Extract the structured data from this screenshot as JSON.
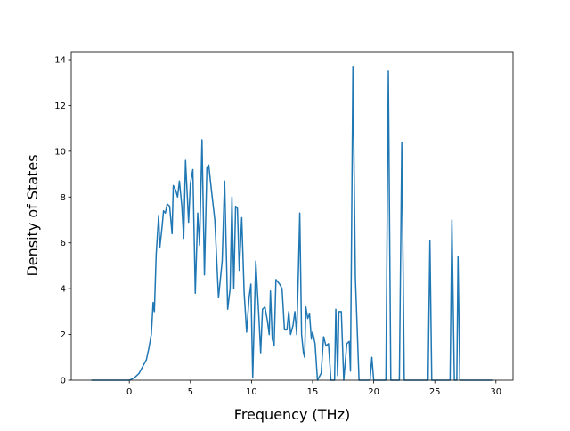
{
  "chart_data": {
    "type": "line",
    "xlabel": "Frequency (THz)",
    "ylabel": "Density of States",
    "color": "#1f77b4",
    "x": [
      -3.1,
      0,
      0.4,
      0.8,
      1.1,
      1.4,
      1.6,
      1.8,
      1.95,
      2.05,
      2.2,
      2.4,
      2.5,
      2.7,
      2.8,
      2.95,
      3.1,
      3.3,
      3.5,
      3.6,
      3.8,
      3.95,
      4.1,
      4.3,
      4.45,
      4.6,
      4.75,
      4.85,
      5.0,
      5.2,
      5.4,
      5.6,
      5.75,
      5.95,
      6.15,
      6.35,
      6.5,
      6.7,
      7.0,
      7.3,
      7.6,
      7.8,
      8.05,
      8.25,
      8.4,
      8.55,
      8.7,
      8.85,
      9.0,
      9.2,
      9.4,
      9.6,
      9.8,
      9.95,
      10.1,
      10.35,
      10.6,
      10.75,
      10.9,
      11.1,
      11.3,
      11.45,
      11.55,
      11.7,
      11.85,
      12.0,
      12.3,
      12.5,
      12.7,
      12.9,
      13.05,
      13.2,
      13.4,
      13.55,
      13.7,
      13.85,
      13.95,
      14.1,
      14.25,
      14.35,
      14.45,
      14.6,
      14.75,
      14.9,
      15.0,
      15.2,
      15.4,
      15.7,
      15.9,
      16.1,
      16.3,
      16.5,
      16.8,
      16.9,
      17.05,
      17.15,
      17.35,
      17.55,
      17.8,
      18.0,
      18.1,
      18.3,
      18.5,
      18.8,
      19.7,
      19.85,
      20.0,
      21.0,
      21.2,
      21.4,
      22.1,
      22.3,
      22.5,
      24.45,
      24.6,
      24.75,
      26.25,
      26.4,
      26.6,
      26.8,
      26.9,
      27.05,
      29.7
    ],
    "values": [
      0,
      0,
      0.1,
      0.3,
      0.6,
      0.9,
      1.4,
      2.0,
      3.4,
      3.0,
      5.5,
      7.2,
      5.8,
      6.8,
      7.4,
      7.3,
      7.7,
      7.6,
      6.4,
      8.5,
      8.3,
      8.0,
      8.7,
      7.6,
      6.2,
      9.6,
      8.0,
      6.9,
      8.6,
      9.2,
      3.8,
      7.3,
      5.9,
      10.5,
      4.6,
      9.3,
      9.4,
      8.4,
      7.0,
      3.6,
      5.2,
      8.7,
      3.1,
      4.0,
      8.0,
      4.0,
      7.6,
      7.5,
      4.8,
      7.1,
      3.8,
      2.1,
      3.6,
      4.2,
      0.1,
      5.2,
      2.8,
      1.2,
      3.1,
      3.2,
      2.6,
      2.0,
      3.9,
      1.8,
      1.5,
      4.4,
      4.2,
      4.0,
      2.2,
      2.2,
      3.0,
      2.0,
      2.4,
      3.0,
      2.0,
      5.0,
      7.3,
      2.0,
      1.2,
      1.0,
      3.2,
      2.7,
      2.9,
      1.8,
      2.1,
      1.6,
      0,
      0.3,
      1.9,
      1.5,
      1.6,
      0,
      0,
      3.1,
      0.2,
      3.0,
      3.0,
      0,
      1.6,
      1.7,
      0.4,
      13.7,
      4.5,
      0,
      0,
      1.0,
      0,
      0,
      13.5,
      0,
      0,
      10.4,
      0,
      0,
      6.1,
      0,
      0,
      7.0,
      0,
      0,
      5.4,
      0,
      0
    ],
    "xlim": [
      -4.75,
      31.4
    ],
    "ylim": [
      0,
      14.35
    ],
    "xticks": [
      0,
      5,
      10,
      15,
      20,
      25,
      30
    ],
    "yticks": [
      0,
      2,
      4,
      6,
      8,
      10,
      12,
      14
    ]
  }
}
